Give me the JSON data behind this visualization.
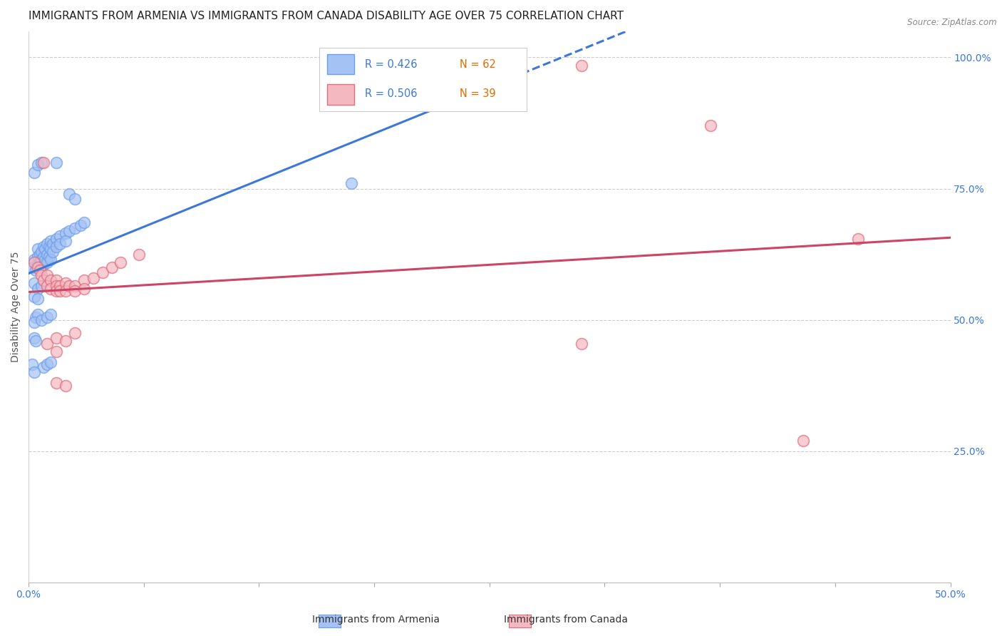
{
  "title": "IMMIGRANTS FROM ARMENIA VS IMMIGRANTS FROM CANADA DISABILITY AGE OVER 75 CORRELATION CHART",
  "source": "Source: ZipAtlas.com",
  "ylabel": "Disability Age Over 75",
  "ylabel_right_labels": [
    "100.0%",
    "75.0%",
    "50.0%",
    "25.0%"
  ],
  "ylabel_right_positions": [
    1.0,
    0.75,
    0.5,
    0.25
  ],
  "legend_r1": "R = 0.426",
  "legend_n1": "N = 62",
  "legend_r2": "R = 0.506",
  "legend_n2": "N = 39",
  "armenia_color": "#a4c2f4",
  "canada_color": "#f4b8c1",
  "armenia_edge": "#6d9eeb",
  "canada_edge": "#e06c7c",
  "armenia_scatter": [
    [
      0.002,
      0.6
    ],
    [
      0.003,
      0.615
    ],
    [
      0.004,
      0.595
    ],
    [
      0.005,
      0.635
    ],
    [
      0.005,
      0.62
    ],
    [
      0.005,
      0.605
    ],
    [
      0.006,
      0.625
    ],
    [
      0.006,
      0.61
    ],
    [
      0.006,
      0.6
    ],
    [
      0.007,
      0.63
    ],
    [
      0.007,
      0.615
    ],
    [
      0.007,
      0.6
    ],
    [
      0.008,
      0.64
    ],
    [
      0.008,
      0.62
    ],
    [
      0.008,
      0.605
    ],
    [
      0.009,
      0.635
    ],
    [
      0.009,
      0.615
    ],
    [
      0.01,
      0.645
    ],
    [
      0.01,
      0.625
    ],
    [
      0.01,
      0.61
    ],
    [
      0.011,
      0.64
    ],
    [
      0.011,
      0.62
    ],
    [
      0.012,
      0.65
    ],
    [
      0.012,
      0.635
    ],
    [
      0.012,
      0.615
    ],
    [
      0.013,
      0.645
    ],
    [
      0.013,
      0.63
    ],
    [
      0.015,
      0.655
    ],
    [
      0.015,
      0.64
    ],
    [
      0.017,
      0.66
    ],
    [
      0.017,
      0.645
    ],
    [
      0.02,
      0.665
    ],
    [
      0.02,
      0.65
    ],
    [
      0.022,
      0.67
    ],
    [
      0.025,
      0.675
    ],
    [
      0.028,
      0.68
    ],
    [
      0.03,
      0.685
    ],
    [
      0.003,
      0.78
    ],
    [
      0.005,
      0.795
    ],
    [
      0.007,
      0.8
    ],
    [
      0.015,
      0.8
    ],
    [
      0.003,
      0.57
    ],
    [
      0.005,
      0.56
    ],
    [
      0.007,
      0.565
    ],
    [
      0.003,
      0.545
    ],
    [
      0.005,
      0.54
    ],
    [
      0.004,
      0.505
    ],
    [
      0.005,
      0.51
    ],
    [
      0.003,
      0.495
    ],
    [
      0.007,
      0.5
    ],
    [
      0.01,
      0.505
    ],
    [
      0.012,
      0.51
    ],
    [
      0.003,
      0.465
    ],
    [
      0.004,
      0.46
    ],
    [
      0.008,
      0.41
    ],
    [
      0.01,
      0.415
    ],
    [
      0.012,
      0.42
    ],
    [
      0.002,
      0.415
    ],
    [
      0.003,
      0.4
    ],
    [
      0.175,
      0.76
    ],
    [
      0.022,
      0.74
    ],
    [
      0.025,
      0.73
    ]
  ],
  "canada_scatter": [
    [
      0.003,
      0.61
    ],
    [
      0.005,
      0.6
    ],
    [
      0.006,
      0.595
    ],
    [
      0.007,
      0.585
    ],
    [
      0.008,
      0.575
    ],
    [
      0.01,
      0.585
    ],
    [
      0.01,
      0.565
    ],
    [
      0.012,
      0.575
    ],
    [
      0.012,
      0.56
    ],
    [
      0.015,
      0.575
    ],
    [
      0.015,
      0.565
    ],
    [
      0.015,
      0.555
    ],
    [
      0.017,
      0.565
    ],
    [
      0.017,
      0.555
    ],
    [
      0.02,
      0.57
    ],
    [
      0.02,
      0.555
    ],
    [
      0.022,
      0.565
    ],
    [
      0.025,
      0.565
    ],
    [
      0.025,
      0.555
    ],
    [
      0.03,
      0.575
    ],
    [
      0.03,
      0.56
    ],
    [
      0.035,
      0.58
    ],
    [
      0.04,
      0.59
    ],
    [
      0.045,
      0.6
    ],
    [
      0.05,
      0.61
    ],
    [
      0.06,
      0.625
    ],
    [
      0.008,
      0.8
    ],
    [
      0.01,
      0.455
    ],
    [
      0.015,
      0.465
    ],
    [
      0.015,
      0.44
    ],
    [
      0.02,
      0.46
    ],
    [
      0.025,
      0.475
    ],
    [
      0.015,
      0.38
    ],
    [
      0.02,
      0.375
    ],
    [
      0.3,
      0.455
    ],
    [
      0.3,
      0.985
    ],
    [
      0.37,
      0.87
    ],
    [
      0.45,
      0.655
    ],
    [
      0.42,
      0.27
    ]
  ],
  "xlim": [
    0.0,
    0.5
  ],
  "ylim": [
    0.0,
    1.05
  ],
  "grid_color": "#cccccc",
  "background_color": "#ffffff",
  "title_fontsize": 11,
  "axis_label_fontsize": 10,
  "trend_solid_end": 0.25,
  "armenia_line_color": "#3c78d8",
  "canada_line_color": "#cc4466"
}
